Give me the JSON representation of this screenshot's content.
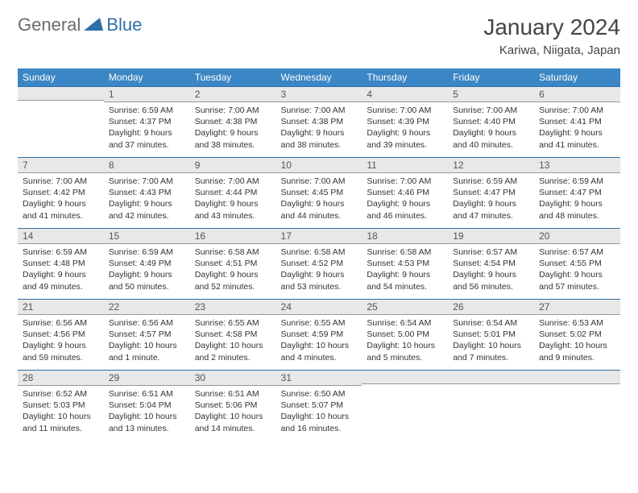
{
  "logo": {
    "general": "General",
    "blue": "Blue"
  },
  "title": "January 2024",
  "location": "Kariwa, Niigata, Japan",
  "colors": {
    "header_bg": "#3b86c4",
    "header_fg": "#ffffff",
    "daynum_bg": "#e8e8e8",
    "daynum_border_top": "#2f6fa8",
    "logo_blue": "#2f6fa8",
    "logo_gray": "#6b6b6b"
  },
  "weekdays": [
    "Sunday",
    "Monday",
    "Tuesday",
    "Wednesday",
    "Thursday",
    "Friday",
    "Saturday"
  ],
  "weeks": [
    [
      {
        "n": "",
        "sr": "",
        "ss": "",
        "dl": ""
      },
      {
        "n": "1",
        "sr": "Sunrise: 6:59 AM",
        "ss": "Sunset: 4:37 PM",
        "dl": "Daylight: 9 hours and 37 minutes."
      },
      {
        "n": "2",
        "sr": "Sunrise: 7:00 AM",
        "ss": "Sunset: 4:38 PM",
        "dl": "Daylight: 9 hours and 38 minutes."
      },
      {
        "n": "3",
        "sr": "Sunrise: 7:00 AM",
        "ss": "Sunset: 4:38 PM",
        "dl": "Daylight: 9 hours and 38 minutes."
      },
      {
        "n": "4",
        "sr": "Sunrise: 7:00 AM",
        "ss": "Sunset: 4:39 PM",
        "dl": "Daylight: 9 hours and 39 minutes."
      },
      {
        "n": "5",
        "sr": "Sunrise: 7:00 AM",
        "ss": "Sunset: 4:40 PM",
        "dl": "Daylight: 9 hours and 40 minutes."
      },
      {
        "n": "6",
        "sr": "Sunrise: 7:00 AM",
        "ss": "Sunset: 4:41 PM",
        "dl": "Daylight: 9 hours and 41 minutes."
      }
    ],
    [
      {
        "n": "7",
        "sr": "Sunrise: 7:00 AM",
        "ss": "Sunset: 4:42 PM",
        "dl": "Daylight: 9 hours and 41 minutes."
      },
      {
        "n": "8",
        "sr": "Sunrise: 7:00 AM",
        "ss": "Sunset: 4:43 PM",
        "dl": "Daylight: 9 hours and 42 minutes."
      },
      {
        "n": "9",
        "sr": "Sunrise: 7:00 AM",
        "ss": "Sunset: 4:44 PM",
        "dl": "Daylight: 9 hours and 43 minutes."
      },
      {
        "n": "10",
        "sr": "Sunrise: 7:00 AM",
        "ss": "Sunset: 4:45 PM",
        "dl": "Daylight: 9 hours and 44 minutes."
      },
      {
        "n": "11",
        "sr": "Sunrise: 7:00 AM",
        "ss": "Sunset: 4:46 PM",
        "dl": "Daylight: 9 hours and 46 minutes."
      },
      {
        "n": "12",
        "sr": "Sunrise: 6:59 AM",
        "ss": "Sunset: 4:47 PM",
        "dl": "Daylight: 9 hours and 47 minutes."
      },
      {
        "n": "13",
        "sr": "Sunrise: 6:59 AM",
        "ss": "Sunset: 4:47 PM",
        "dl": "Daylight: 9 hours and 48 minutes."
      }
    ],
    [
      {
        "n": "14",
        "sr": "Sunrise: 6:59 AM",
        "ss": "Sunset: 4:48 PM",
        "dl": "Daylight: 9 hours and 49 minutes."
      },
      {
        "n": "15",
        "sr": "Sunrise: 6:59 AM",
        "ss": "Sunset: 4:49 PM",
        "dl": "Daylight: 9 hours and 50 minutes."
      },
      {
        "n": "16",
        "sr": "Sunrise: 6:58 AM",
        "ss": "Sunset: 4:51 PM",
        "dl": "Daylight: 9 hours and 52 minutes."
      },
      {
        "n": "17",
        "sr": "Sunrise: 6:58 AM",
        "ss": "Sunset: 4:52 PM",
        "dl": "Daylight: 9 hours and 53 minutes."
      },
      {
        "n": "18",
        "sr": "Sunrise: 6:58 AM",
        "ss": "Sunset: 4:53 PM",
        "dl": "Daylight: 9 hours and 54 minutes."
      },
      {
        "n": "19",
        "sr": "Sunrise: 6:57 AM",
        "ss": "Sunset: 4:54 PM",
        "dl": "Daylight: 9 hours and 56 minutes."
      },
      {
        "n": "20",
        "sr": "Sunrise: 6:57 AM",
        "ss": "Sunset: 4:55 PM",
        "dl": "Daylight: 9 hours and 57 minutes."
      }
    ],
    [
      {
        "n": "21",
        "sr": "Sunrise: 6:56 AM",
        "ss": "Sunset: 4:56 PM",
        "dl": "Daylight: 9 hours and 59 minutes."
      },
      {
        "n": "22",
        "sr": "Sunrise: 6:56 AM",
        "ss": "Sunset: 4:57 PM",
        "dl": "Daylight: 10 hours and 1 minute."
      },
      {
        "n": "23",
        "sr": "Sunrise: 6:55 AM",
        "ss": "Sunset: 4:58 PM",
        "dl": "Daylight: 10 hours and 2 minutes."
      },
      {
        "n": "24",
        "sr": "Sunrise: 6:55 AM",
        "ss": "Sunset: 4:59 PM",
        "dl": "Daylight: 10 hours and 4 minutes."
      },
      {
        "n": "25",
        "sr": "Sunrise: 6:54 AM",
        "ss": "Sunset: 5:00 PM",
        "dl": "Daylight: 10 hours and 5 minutes."
      },
      {
        "n": "26",
        "sr": "Sunrise: 6:54 AM",
        "ss": "Sunset: 5:01 PM",
        "dl": "Daylight: 10 hours and 7 minutes."
      },
      {
        "n": "27",
        "sr": "Sunrise: 6:53 AM",
        "ss": "Sunset: 5:02 PM",
        "dl": "Daylight: 10 hours and 9 minutes."
      }
    ],
    [
      {
        "n": "28",
        "sr": "Sunrise: 6:52 AM",
        "ss": "Sunset: 5:03 PM",
        "dl": "Daylight: 10 hours and 11 minutes."
      },
      {
        "n": "29",
        "sr": "Sunrise: 6:51 AM",
        "ss": "Sunset: 5:04 PM",
        "dl": "Daylight: 10 hours and 13 minutes."
      },
      {
        "n": "30",
        "sr": "Sunrise: 6:51 AM",
        "ss": "Sunset: 5:06 PM",
        "dl": "Daylight: 10 hours and 14 minutes."
      },
      {
        "n": "31",
        "sr": "Sunrise: 6:50 AM",
        "ss": "Sunset: 5:07 PM",
        "dl": "Daylight: 10 hours and 16 minutes."
      },
      {
        "n": "",
        "sr": "",
        "ss": "",
        "dl": ""
      },
      {
        "n": "",
        "sr": "",
        "ss": "",
        "dl": ""
      },
      {
        "n": "",
        "sr": "",
        "ss": "",
        "dl": ""
      }
    ]
  ]
}
